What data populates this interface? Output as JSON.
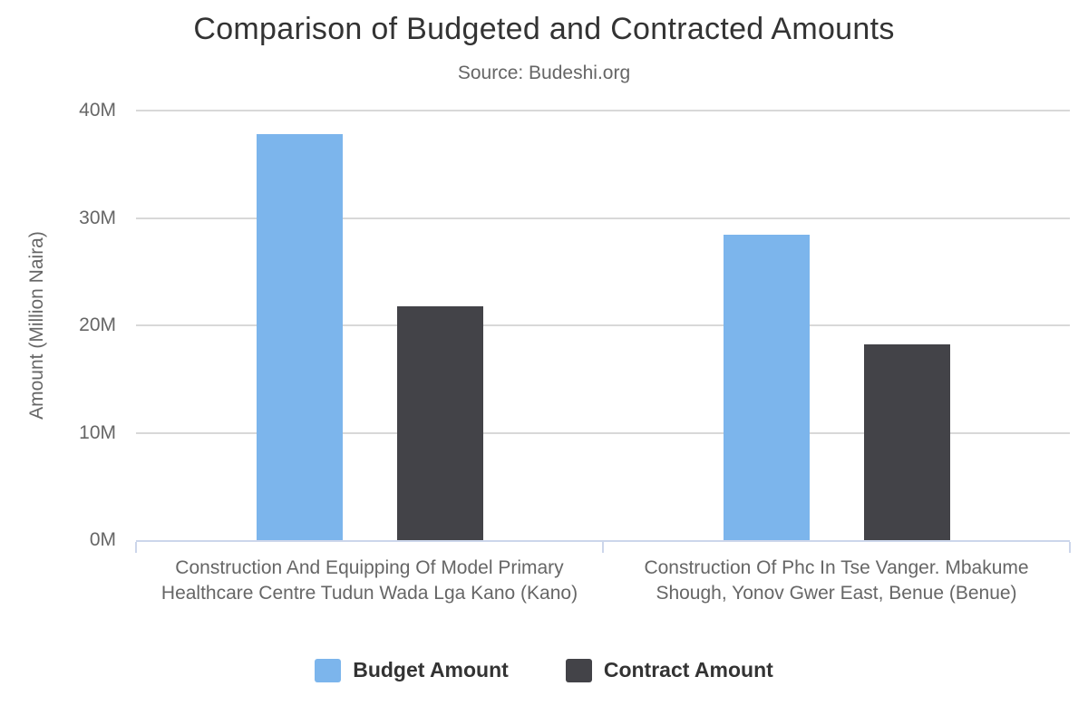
{
  "chart_data": {
    "type": "bar",
    "title": "Comparison of Budgeted and Contracted Amounts",
    "subtitle": "Source: Budeshi.org",
    "ylabel": "Amount (Million Naira)",
    "xlabel": "",
    "categories": [
      "Construction And Equipping Of Model Primary Healthcare Centre Tudun Wada Lga Kano (Kano)",
      "Construction Of Phc In Tse Vanger. Mbakume Shough, Yonov Gwer East, Benue (Benue)"
    ],
    "series": [
      {
        "name": "Budget Amount",
        "color": "#7cb5ec",
        "values": [
          37.8,
          28.4
        ]
      },
      {
        "name": "Contract Amount",
        "color": "#434348",
        "values": [
          21.8,
          18.2
        ]
      }
    ],
    "value_unit": "Million Naira",
    "ylim": [
      0,
      40
    ],
    "yticks": [
      {
        "value": 0,
        "label": "0M"
      },
      {
        "value": 10,
        "label": "10M"
      },
      {
        "value": 20,
        "label": "20M"
      },
      {
        "value": 30,
        "label": "30M"
      },
      {
        "value": 40,
        "label": "40M"
      }
    ],
    "grid": true,
    "legend_position": "bottom",
    "colors": {
      "grid_line": "#d8d8d8",
      "axis_line": "#ccd6eb",
      "title_text": "#333333",
      "label_text": "#666666"
    }
  }
}
